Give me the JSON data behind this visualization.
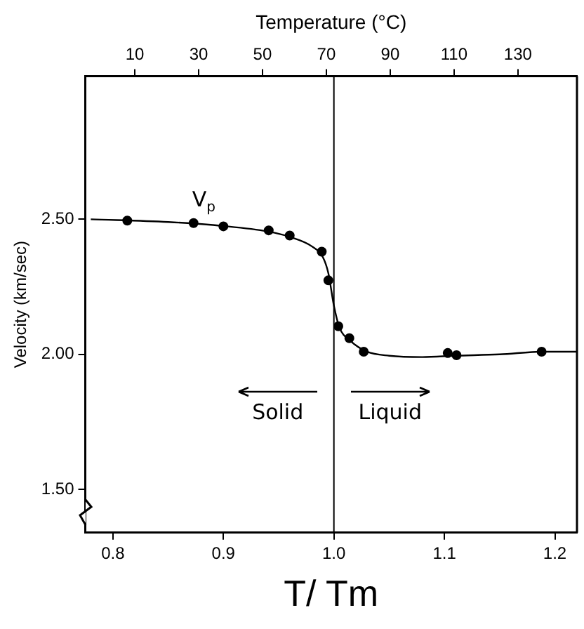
{
  "chart_data": {
    "type": "scatter",
    "xlabel": "T/ Tm",
    "ylabel": "Velocity (km/sec)",
    "x2label": "Temperature (°C)",
    "xlim": [
      0.775,
      1.22
    ],
    "xticks": [
      0.8,
      0.9,
      {
        "value": 1.0,
        "label": "1.0"
      },
      1.1,
      1.2
    ],
    "x2lim": [
      -5.5,
      148.5
    ],
    "x2ticks": [
      10,
      30,
      50,
      70,
      90,
      110,
      130
    ],
    "ylim": [
      1.34,
      3.03
    ],
    "yticks": [
      {
        "value": 1.5,
        "label": "1.50"
      },
      {
        "value": 2.0,
        "label": "2.00"
      },
      {
        "value": 2.5,
        "label": "2.50"
      }
    ],
    "grid": false,
    "legend": false,
    "marker": "circle",
    "series": [
      {
        "color": "#000000",
        "x": [
          0.813,
          0.873,
          0.9,
          0.941,
          0.96,
          0.989,
          0.995,
          1.004,
          1.014,
          1.027,
          1.103,
          1.111,
          1.188
        ],
        "values": [
          2.495,
          2.486,
          2.474,
          2.459,
          2.44,
          2.38,
          2.274,
          2.104,
          2.06,
          2.01,
          2.005,
          1.997,
          2.01
        ]
      },
      {
        "type": "line",
        "name": "V$_{p}$",
        "color": "#000000",
        "marker": "none",
        "line_style": "solid",
        "x": [
          0.78,
          0.85,
          0.9,
          0.94,
          0.96,
          0.98,
          0.99,
          0.995,
          1.0,
          1.005,
          1.015,
          1.03,
          1.05,
          1.08,
          1.11,
          1.15,
          1.19,
          1.22
        ],
        "values": [
          2.5,
          2.49,
          2.475,
          2.455,
          2.435,
          2.4,
          2.36,
          2.3,
          2.18,
          2.1,
          2.05,
          2.01,
          1.995,
          1.99,
          1.995,
          2.0,
          2.01,
          2.01
        ]
      }
    ],
    "ref_lines": [
      {
        "axis": "x",
        "value": 1.0,
        "color": "#000000"
      }
    ],
    "annotations": [
      "Solid",
      "Liquid"
    ]
  }
}
